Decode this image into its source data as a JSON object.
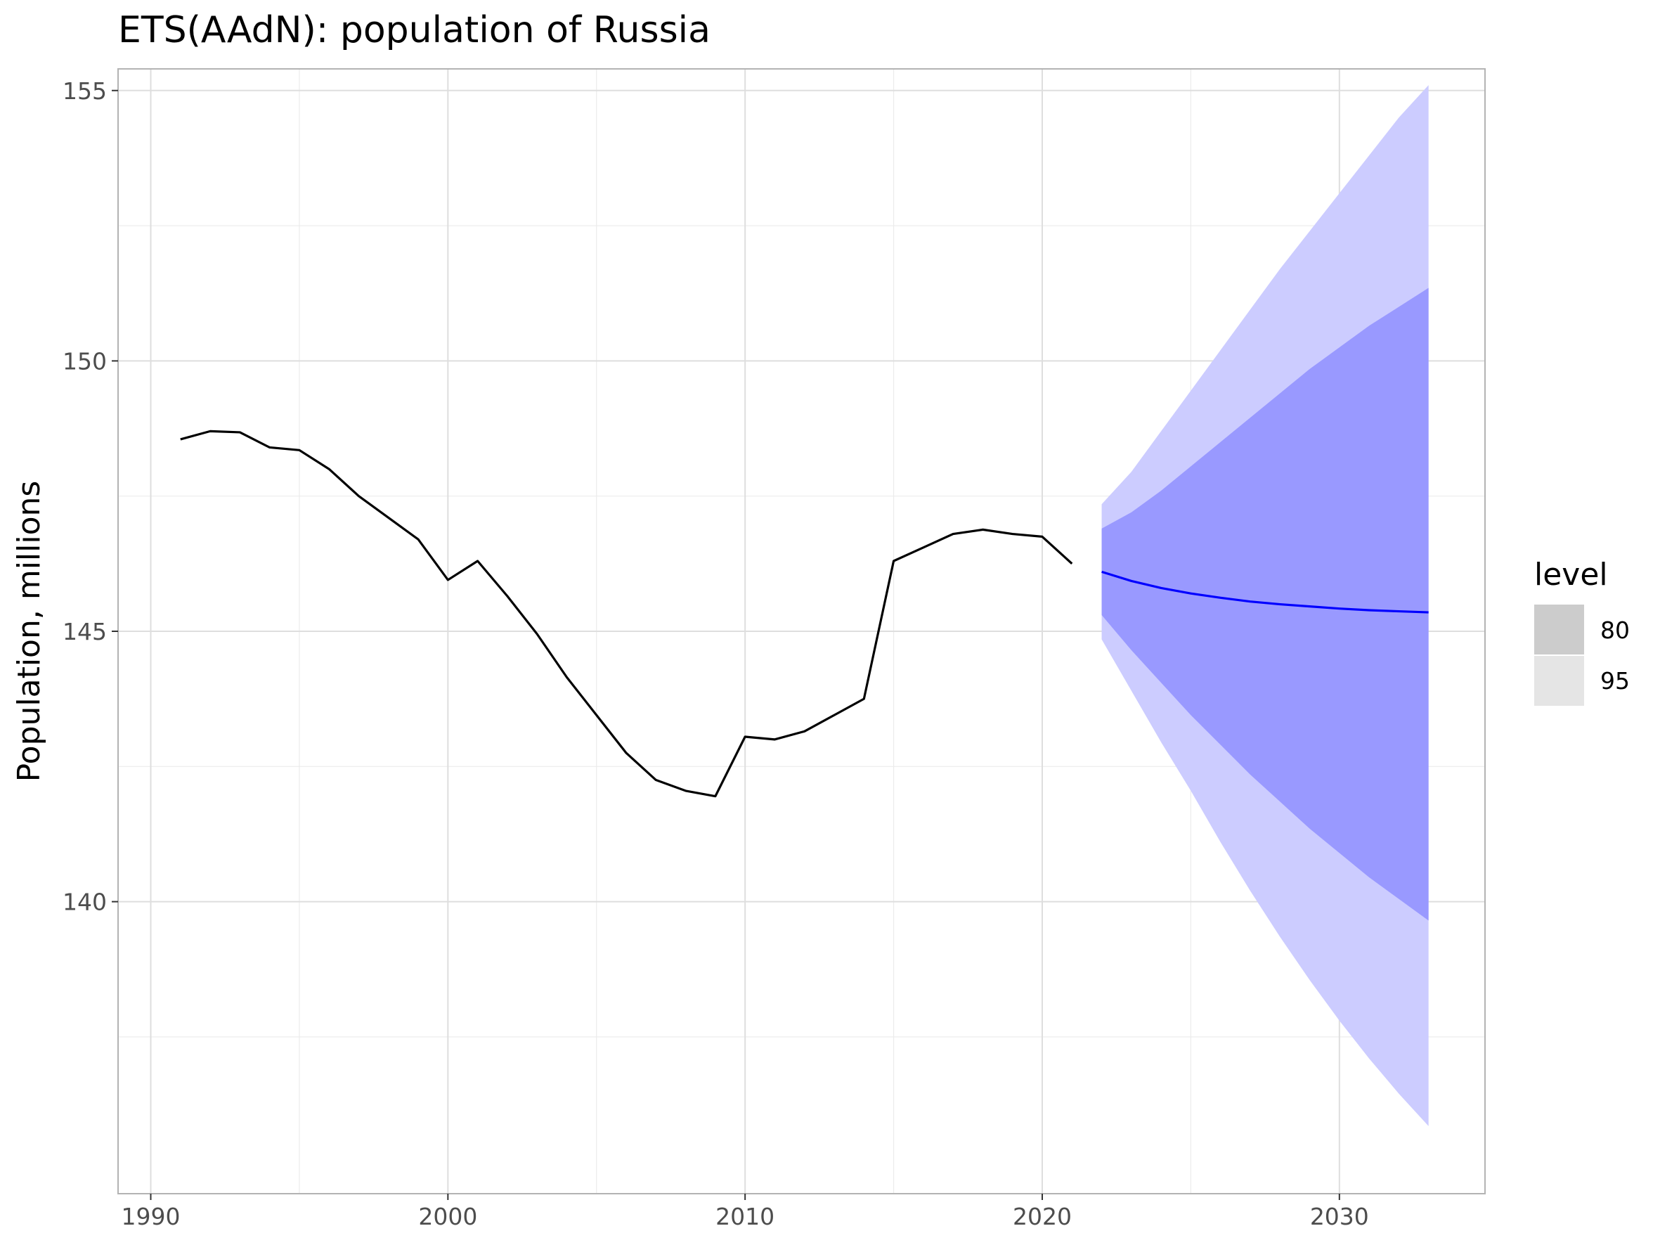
{
  "chart_data": {
    "type": "line",
    "title": "ETS(AAdN): population of Russia",
    "xlabel": "",
    "ylabel": "Population, millions",
    "xlim": [
      1988.9,
      2034.9
    ],
    "ylim": [
      134.6,
      155.4
    ],
    "x_ticks": [
      1990,
      2000,
      2010,
      2020,
      2030
    ],
    "x_tick_labels": [
      "1990",
      "2000",
      "2010",
      "2020",
      "2030"
    ],
    "y_ticks": [
      140,
      145,
      150,
      155
    ],
    "y_tick_labels": [
      "140",
      "145",
      "150",
      "155"
    ],
    "y_minor_ticks": [
      137.5,
      142.5,
      147.5,
      152.5
    ],
    "x_minor_ticks": [
      1995,
      2005,
      2015,
      2025
    ],
    "grid": true,
    "legend": {
      "title": "level",
      "position": "right",
      "entries": [
        {
          "label": "80",
          "fill": "#cccccc"
        },
        {
          "label": "95",
          "fill": "#e5e5e5"
        }
      ]
    },
    "colors": {
      "history": "#000000",
      "forecast": "#0000ff",
      "band80": "#9999ff",
      "band95": "#ccccff"
    },
    "history": {
      "x": [
        1991,
        1992,
        1993,
        1994,
        1995,
        1996,
        1997,
        1998,
        1999,
        2000,
        2001,
        2002,
        2003,
        2004,
        2005,
        2006,
        2007,
        2008,
        2009,
        2010,
        2011,
        2012,
        2013,
        2014,
        2015,
        2016,
        2017,
        2018,
        2019,
        2020,
        2021
      ],
      "y": [
        148.55,
        148.7,
        148.68,
        148.4,
        148.35,
        148.0,
        147.5,
        147.1,
        146.7,
        145.95,
        146.3,
        145.65,
        144.95,
        144.15,
        143.45,
        142.75,
        142.25,
        142.05,
        141.95,
        143.05,
        143.0,
        143.15,
        143.45,
        143.75,
        146.3,
        146.55,
        146.8,
        146.88,
        146.8,
        146.75,
        146.25
      ]
    },
    "forecast": {
      "x": [
        2022,
        2023,
        2024,
        2025,
        2026,
        2027,
        2028,
        2029,
        2030,
        2031,
        2032,
        2033
      ],
      "mean": [
        146.1,
        145.93,
        145.8,
        145.7,
        145.62,
        145.55,
        145.5,
        145.46,
        145.42,
        145.39,
        145.37,
        145.35
      ],
      "lo80": [
        145.3,
        144.65,
        144.05,
        143.45,
        142.9,
        142.35,
        141.85,
        141.35,
        140.9,
        140.45,
        140.05,
        139.65
      ],
      "hi80": [
        146.9,
        147.2,
        147.6,
        148.05,
        148.5,
        148.95,
        149.4,
        149.85,
        150.25,
        150.65,
        151.0,
        151.35
      ],
      "lo95": [
        144.85,
        143.9,
        142.95,
        142.05,
        141.1,
        140.2,
        139.35,
        138.55,
        137.8,
        137.1,
        136.45,
        135.85
      ],
      "hi95": [
        147.35,
        147.95,
        148.7,
        149.45,
        150.2,
        150.95,
        151.7,
        152.4,
        153.1,
        153.8,
        154.5,
        155.1
      ]
    }
  }
}
